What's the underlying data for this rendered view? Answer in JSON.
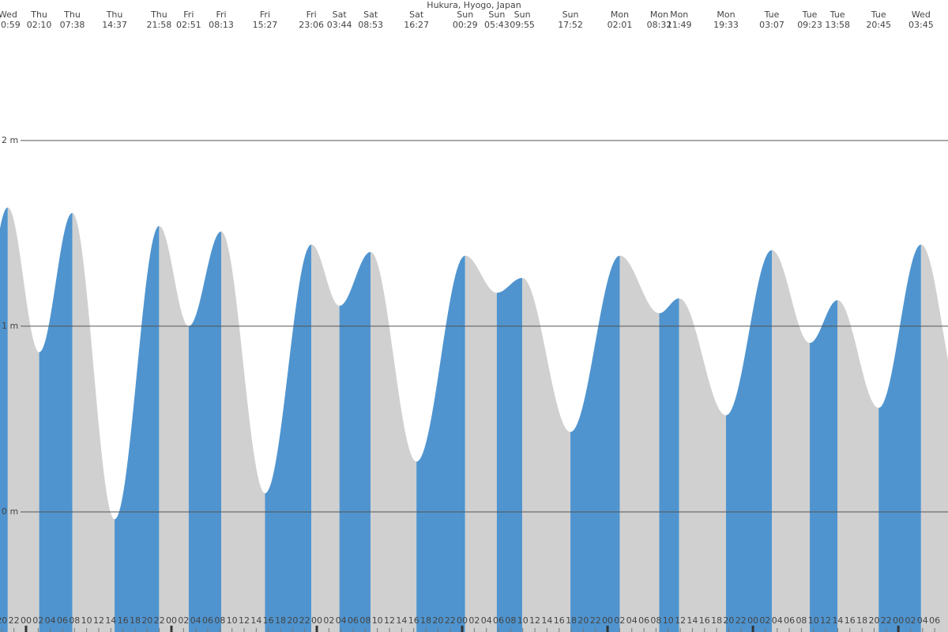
{
  "chart_data": {
    "type": "tide",
    "title": "Hukura, Hyogo, Japan",
    "extremes": {
      "days": [
        "Wed",
        "Thu",
        "Thu",
        "Thu",
        "Thu",
        "Fri",
        "Fri",
        "Fri",
        "Fri",
        "Sat",
        "Sat",
        "Sat",
        "Sun",
        "Sun",
        "Sun",
        "Sun",
        "Mon",
        "Mon",
        "Mon",
        "Mon",
        "Tue",
        "Tue",
        "Tue",
        "Tue",
        "Wed"
      ],
      "times": [
        "20:59",
        "02:10",
        "07:38",
        "14:37",
        "21:58",
        "02:51",
        "08:13",
        "15:27",
        "23:06",
        "03:44",
        "08:53",
        "16:27",
        "00:29",
        "05:43",
        "09:55",
        "17:52",
        "02:01",
        "08:32",
        "11:49",
        "19:33",
        "03:07",
        "09:23",
        "13:58",
        "20:45",
        "03:45"
      ],
      "heights": [
        1.64,
        0.86,
        1.61,
        -0.04,
        1.54,
        1.0,
        1.51,
        0.1,
        1.44,
        1.11,
        1.4,
        0.27,
        1.38,
        1.18,
        1.26,
        0.43,
        1.38,
        1.07,
        1.15,
        0.52,
        1.41,
        0.91,
        1.14,
        0.56,
        1.44
      ]
    },
    "rising_color": "#4f94cf",
    "falling_color": "#d0d0d0",
    "xlim": [
      19.7,
      176.2
    ],
    "ylim": [
      -0.647,
      2.757
    ],
    "yticks": [
      {
        "value": 0,
        "label": "0 m"
      },
      {
        "value": 1,
        "label": "1 m"
      },
      {
        "value": 2,
        "label": "2 m"
      }
    ],
    "xticks": [
      20,
      22,
      {
        "value": 24,
        "label": "00"
      },
      {
        "value": 26,
        "label": "02"
      },
      {
        "value": 28,
        "label": "04"
      },
      {
        "value": 30,
        "label": "06"
      },
      {
        "value": 32,
        "label": "08"
      },
      {
        "value": 34,
        "label": "10"
      },
      {
        "value": 36,
        "label": "12"
      },
      {
        "value": 38,
        "label": "14"
      },
      {
        "value": 40,
        "label": "16"
      },
      {
        "value": 42,
        "label": "18"
      },
      {
        "value": 44,
        "label": "20"
      },
      {
        "value": 46,
        "label": "22"
      },
      {
        "value": 48,
        "label": "00"
      },
      {
        "value": 50,
        "label": "02"
      },
      {
        "value": 52,
        "label": "04"
      },
      {
        "value": 54,
        "label": "06"
      },
      {
        "value": 56,
        "label": "08"
      },
      {
        "value": 58,
        "label": "10"
      },
      {
        "value": 60,
        "label": "12"
      },
      {
        "value": 62,
        "label": "14"
      },
      {
        "value": 64,
        "label": "16"
      },
      {
        "value": 66,
        "label": "18"
      },
      {
        "value": 68,
        "label": "20"
      },
      {
        "value": 70,
        "label": "22"
      },
      {
        "value": 72,
        "label": "00"
      },
      {
        "value": 74,
        "label": "02"
      },
      {
        "value": 76,
        "label": "04"
      },
      {
        "value": 78,
        "label": "06"
      },
      {
        "value": 80,
        "label": "08"
      },
      {
        "value": 82,
        "label": "10"
      },
      {
        "value": 84,
        "label": "12"
      },
      {
        "value": 86,
        "label": "14"
      },
      {
        "value": 88,
        "label": "16"
      },
      {
        "value": 90,
        "label": "18"
      },
      {
        "value": 92,
        "label": "20"
      },
      {
        "value": 94,
        "label": "22"
      },
      {
        "value": 96,
        "label": "00"
      },
      {
        "value": 98,
        "label": "02"
      },
      {
        "value": 100,
        "label": "04"
      },
      {
        "value": 102,
        "label": "06"
      },
      {
        "value": 104,
        "label": "08"
      },
      {
        "value": 106,
        "label": "10"
      },
      {
        "value": 108,
        "label": "12"
      },
      {
        "value": 110,
        "label": "14"
      },
      {
        "value": 112,
        "label": "16"
      },
      {
        "value": 114,
        "label": "18"
      },
      {
        "value": 116,
        "label": "20"
      },
      {
        "value": 118,
        "label": "22"
      },
      {
        "value": 120,
        "label": "00"
      },
      {
        "value": 122,
        "label": "02"
      },
      {
        "value": 124,
        "label": "04"
      },
      {
        "value": 126,
        "label": "06"
      },
      {
        "value": 128,
        "label": "08"
      },
      {
        "value": 130,
        "label": "10"
      },
      {
        "value": 132,
        "label": "12"
      },
      {
        "value": 134,
        "label": "14"
      },
      {
        "value": 136,
        "label": "16"
      },
      {
        "value": 138,
        "label": "18"
      },
      {
        "value": 140,
        "label": "20"
      },
      {
        "value": 142,
        "label": "22"
      },
      {
        "value": 144,
        "label": "00"
      },
      {
        "value": 146,
        "label": "02"
      },
      {
        "value": 148,
        "label": "04"
      },
      {
        "value": 150,
        "label": "06"
      },
      {
        "value": 152,
        "label": "08"
      },
      {
        "value": 154,
        "label": "10"
      },
      {
        "value": 156,
        "label": "12"
      },
      {
        "value": 158,
        "label": "14"
      },
      {
        "value": 160,
        "label": "16"
      },
      {
        "value": 162,
        "label": "18"
      },
      {
        "value": 164,
        "label": "20"
      },
      {
        "value": 166,
        "label": "22"
      },
      {
        "value": 168,
        "label": "00"
      },
      {
        "value": 170,
        "label": "02"
      },
      {
        "value": 172,
        "label": "04"
      },
      {
        "value": 174,
        "label": "06"
      }
    ],
    "grid": true
  }
}
